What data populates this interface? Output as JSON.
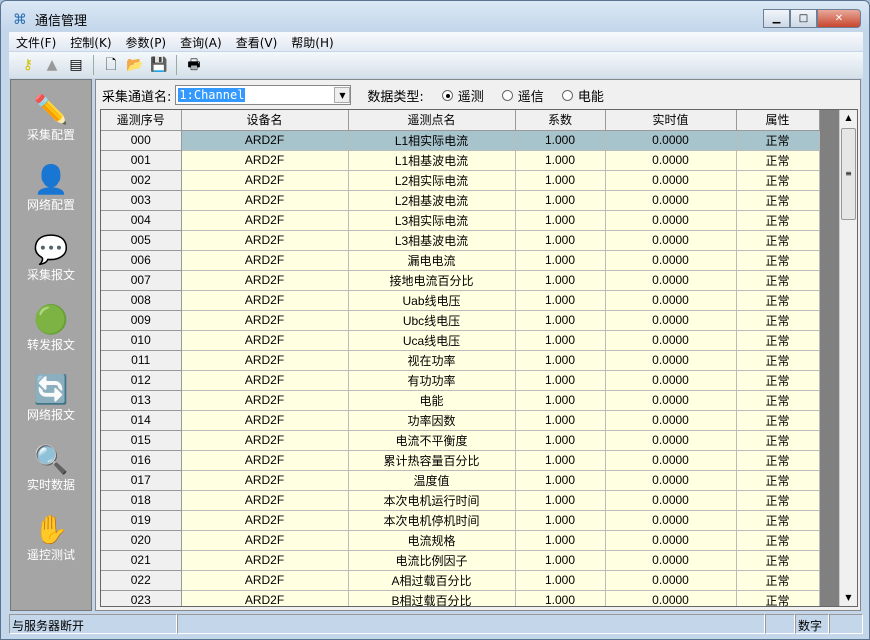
{
  "window": {
    "title": "通信管理"
  },
  "menu": [
    "文件(F)",
    "控制(K)",
    "参数(P)",
    "查询(A)",
    "查看(V)",
    "帮助(H)"
  ],
  "sidebar": [
    {
      "label": "采集配置",
      "icon": "✏️"
    },
    {
      "label": "网络配置",
      "icon": "👤"
    },
    {
      "label": "采集报文",
      "icon": "💬"
    },
    {
      "label": "转发报文",
      "icon": "🟢"
    },
    {
      "label": "网络报文",
      "icon": "🔄"
    },
    {
      "label": "实时数据",
      "icon": "🔍"
    },
    {
      "label": "遥控测试",
      "icon": "✋"
    }
  ],
  "filter": {
    "channel_label": "采集通道名:",
    "channel_value": "1:Channel",
    "type_label": "数据类型:",
    "types": [
      {
        "label": "遥测",
        "checked": true
      },
      {
        "label": "遥信",
        "checked": false
      },
      {
        "label": "电能",
        "checked": false
      }
    ]
  },
  "table": {
    "headers": [
      "遥测序号",
      "设备名",
      "遥测点名",
      "系数",
      "实时值",
      "属性"
    ],
    "rows": [
      [
        "000",
        "ARD2F",
        "L1相实际电流",
        "1.000",
        "0.0000",
        "正常"
      ],
      [
        "001",
        "ARD2F",
        "L1相基波电流",
        "1.000",
        "0.0000",
        "正常"
      ],
      [
        "002",
        "ARD2F",
        "L2相实际电流",
        "1.000",
        "0.0000",
        "正常"
      ],
      [
        "003",
        "ARD2F",
        "L2相基波电流",
        "1.000",
        "0.0000",
        "正常"
      ],
      [
        "004",
        "ARD2F",
        "L3相实际电流",
        "1.000",
        "0.0000",
        "正常"
      ],
      [
        "005",
        "ARD2F",
        "L3相基波电流",
        "1.000",
        "0.0000",
        "正常"
      ],
      [
        "006",
        "ARD2F",
        "漏电电流",
        "1.000",
        "0.0000",
        "正常"
      ],
      [
        "007",
        "ARD2F",
        "接地电流百分比",
        "1.000",
        "0.0000",
        "正常"
      ],
      [
        "008",
        "ARD2F",
        "Uab线电压",
        "1.000",
        "0.0000",
        "正常"
      ],
      [
        "009",
        "ARD2F",
        "Ubc线电压",
        "1.000",
        "0.0000",
        "正常"
      ],
      [
        "010",
        "ARD2F",
        "Uca线电压",
        "1.000",
        "0.0000",
        "正常"
      ],
      [
        "011",
        "ARD2F",
        "视在功率",
        "1.000",
        "0.0000",
        "正常"
      ],
      [
        "012",
        "ARD2F",
        "有功功率",
        "1.000",
        "0.0000",
        "正常"
      ],
      [
        "013",
        "ARD2F",
        "电能",
        "1.000",
        "0.0000",
        "正常"
      ],
      [
        "014",
        "ARD2F",
        "功率因数",
        "1.000",
        "0.0000",
        "正常"
      ],
      [
        "015",
        "ARD2F",
        "电流不平衡度",
        "1.000",
        "0.0000",
        "正常"
      ],
      [
        "016",
        "ARD2F",
        "累计热容量百分比",
        "1.000",
        "0.0000",
        "正常"
      ],
      [
        "017",
        "ARD2F",
        "温度值",
        "1.000",
        "0.0000",
        "正常"
      ],
      [
        "018",
        "ARD2F",
        "本次电机运行时间",
        "1.000",
        "0.0000",
        "正常"
      ],
      [
        "019",
        "ARD2F",
        "本次电机停机时间",
        "1.000",
        "0.0000",
        "正常"
      ],
      [
        "020",
        "ARD2F",
        "电流规格",
        "1.000",
        "0.0000",
        "正常"
      ],
      [
        "021",
        "ARD2F",
        "电流比例因子",
        "1.000",
        "0.0000",
        "正常"
      ],
      [
        "022",
        "ARD2F",
        "A相过载百分比",
        "1.000",
        "0.0000",
        "正常"
      ],
      [
        "023",
        "ARD2F",
        "B相过载百分比",
        "1.000",
        "0.0000",
        "正常"
      ]
    ]
  },
  "status": {
    "connection": "与服务器断开",
    "numlock": "数字"
  }
}
